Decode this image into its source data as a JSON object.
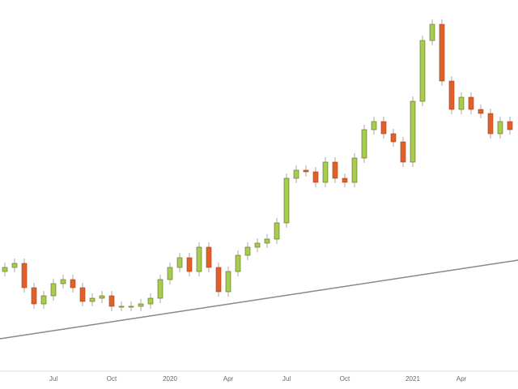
{
  "chart_data": {
    "type": "candlestick",
    "categories": [
      null,
      null,
      null,
      null,
      null,
      "Jul",
      null,
      null,
      null,
      null,
      null,
      "Oct",
      null,
      null,
      null,
      null,
      null,
      "2020",
      null,
      null,
      null,
      null,
      null,
      "Apr",
      null,
      null,
      null,
      null,
      null,
      "Jul",
      null,
      null,
      null,
      null,
      null,
      "Oct",
      null,
      null,
      null,
      null,
      null,
      null,
      "2021",
      null,
      null,
      null,
      null,
      "Apr",
      null,
      null,
      null,
      null,
      null
    ],
    "open": [
      145,
      150,
      155,
      125,
      105,
      115,
      130,
      135,
      125,
      108,
      112,
      115,
      102,
      102,
      102,
      105,
      112,
      135,
      150,
      162,
      145,
      175,
      150,
      120,
      145,
      165,
      175,
      180,
      185,
      205,
      260,
      270,
      268,
      255,
      280,
      260,
      255,
      285,
      320,
      330,
      315,
      305,
      280,
      355,
      430,
      450,
      380,
      345,
      360,
      345,
      340,
      315,
      330
    ],
    "high": [
      156,
      161,
      161,
      131,
      121,
      136,
      141,
      141,
      131,
      118,
      121,
      121,
      108,
      108,
      111,
      118,
      141,
      156,
      168,
      168,
      181,
      181,
      156,
      151,
      171,
      181,
      186,
      191,
      211,
      266,
      276,
      276,
      274,
      286,
      286,
      266,
      291,
      326,
      336,
      336,
      321,
      311,
      361,
      436,
      456,
      456,
      386,
      366,
      366,
      351,
      346,
      336,
      336
    ],
    "low": [
      139,
      144,
      119,
      99,
      99,
      109,
      124,
      119,
      102,
      102,
      106,
      96,
      96,
      96,
      96,
      99,
      106,
      129,
      144,
      139,
      139,
      144,
      114,
      114,
      139,
      159,
      169,
      174,
      179,
      199,
      254,
      262,
      249,
      249,
      254,
      249,
      249,
      279,
      314,
      309,
      299,
      274,
      274,
      349,
      424,
      374,
      339,
      339,
      339,
      334,
      309,
      309,
      314
    ],
    "close": [
      150,
      155,
      125,
      105,
      115,
      130,
      135,
      125,
      108,
      112,
      115,
      102,
      102,
      102,
      105,
      112,
      135,
      150,
      162,
      145,
      175,
      150,
      120,
      145,
      165,
      175,
      180,
      185,
      205,
      260,
      270,
      268,
      255,
      280,
      260,
      255,
      285,
      320,
      330,
      315,
      305,
      280,
      355,
      430,
      450,
      380,
      345,
      360,
      345,
      340,
      315,
      330,
      320
    ],
    "ylim": [
      0,
      480
    ],
    "up_color": "#a8cc4e",
    "down_color": "#e0602a"
  }
}
